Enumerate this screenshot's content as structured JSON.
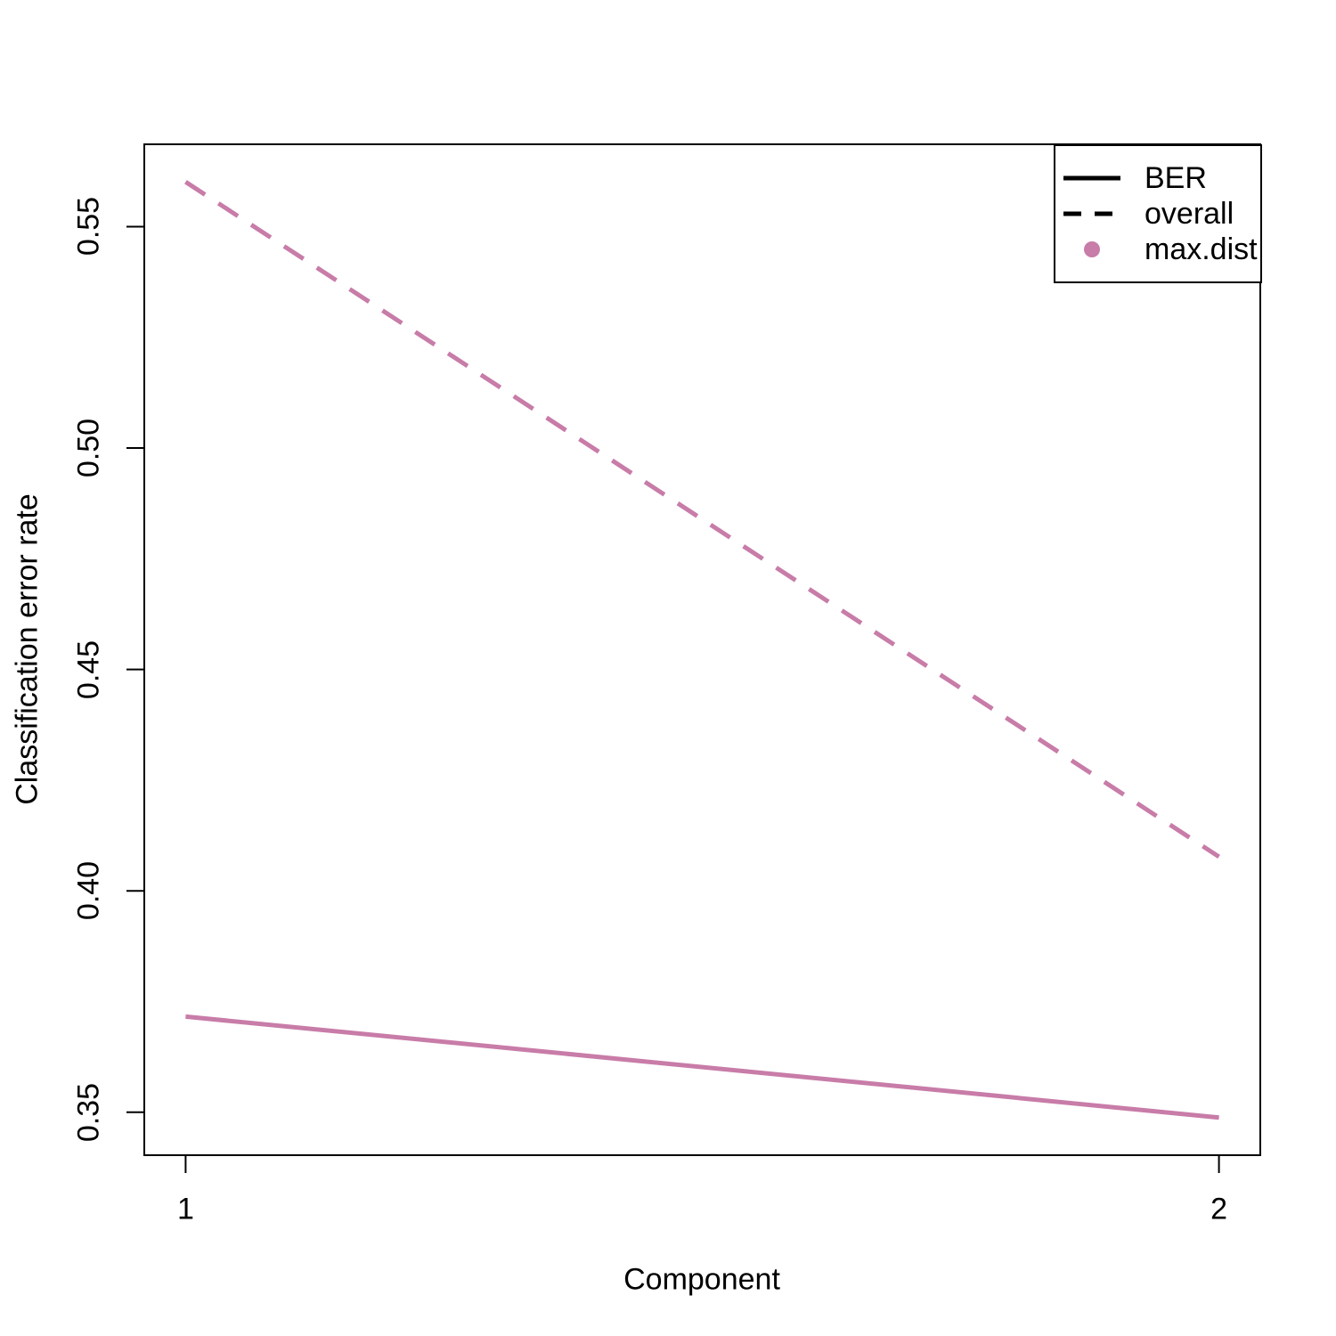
{
  "figure": {
    "background": "#FFFFFF",
    "axis_color": "#000000",
    "accent_color": "#C87CA8"
  },
  "chart_data": {
    "type": "line",
    "title": "",
    "xlabel": "Component",
    "ylabel": "Classification error rate",
    "x": [
      1,
      2
    ],
    "xticks": [
      "1",
      "2"
    ],
    "yticks": [
      "0.55",
      "0.50",
      "0.45",
      "0.40",
      "0.35"
    ],
    "xlim": [
      0.96,
      2.04
    ],
    "ylim": [
      0.3403,
      0.5686
    ],
    "grid": false,
    "series": [
      {
        "name": "BER",
        "linestyle": "solid",
        "color": "#C87CA8",
        "values": [
          0.3716,
          0.3488
        ]
      },
      {
        "name": "overall",
        "linestyle": "dashed",
        "color": "#C87CA8",
        "values": [
          0.5601,
          0.4077
        ]
      }
    ],
    "legend": {
      "position": "topright",
      "entries": [
        {
          "label": "BER",
          "marker": "solid-line",
          "color": "#000000"
        },
        {
          "label": "overall",
          "marker": "dashed-line",
          "color": "#000000"
        },
        {
          "label": "max.dist",
          "marker": "dot",
          "color": "#C87CA8"
        }
      ]
    }
  }
}
